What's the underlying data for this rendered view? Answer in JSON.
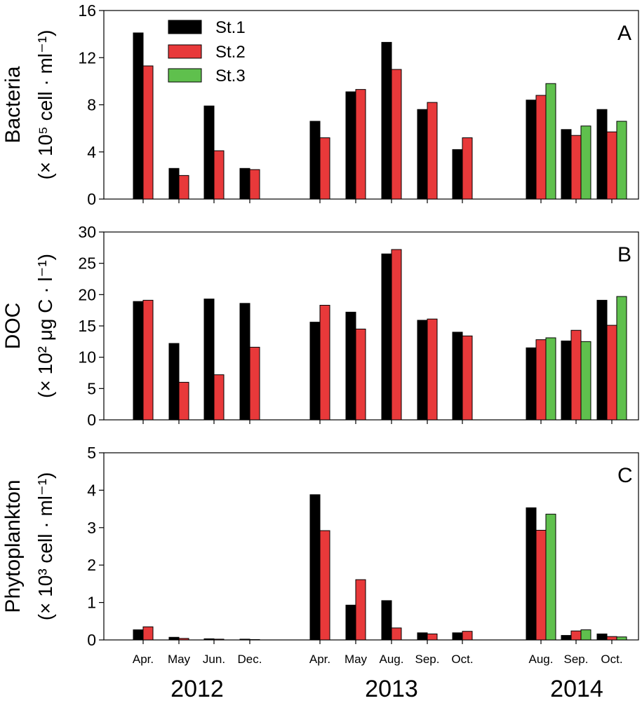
{
  "colors": {
    "st1": "#000000",
    "st2": "#e8393a",
    "st3": "#5fc04d"
  },
  "legend": [
    "St.1",
    "St.2",
    "St.3"
  ],
  "months": [
    "Apr.",
    "May",
    "Jun.",
    "Dec.",
    "Apr.",
    "May",
    "Aug.",
    "Sep.",
    "Oct.",
    "Aug.",
    "Sep.",
    "Oct."
  ],
  "years": [
    "2012",
    "2013",
    "2014"
  ],
  "chart_data": [
    {
      "type": "bar",
      "panel": "A",
      "ylabel_line1": "Bacteria",
      "ylabel_line2": "(× 10⁵ cell · ml⁻¹)",
      "ylim": [
        0,
        16
      ],
      "yticks": [
        0,
        4,
        8,
        12,
        16
      ],
      "categories": [
        "Apr. 2012",
        "May 2012",
        "Jun. 2012",
        "Dec. 2012",
        "Apr. 2013",
        "May 2013",
        "Aug. 2013",
        "Sep. 2013",
        "Oct. 2013",
        "Aug. 2014",
        "Sep. 2014",
        "Oct. 2014"
      ],
      "series": [
        {
          "name": "St.1",
          "values": [
            14.1,
            2.6,
            7.9,
            2.6,
            6.6,
            9.1,
            13.3,
            7.6,
            4.2,
            8.4,
            5.9,
            7.6
          ]
        },
        {
          "name": "St.2",
          "values": [
            11.3,
            2.0,
            4.1,
            2.5,
            5.2,
            9.3,
            11.0,
            8.2,
            5.2,
            8.8,
            5.4,
            5.7
          ]
        },
        {
          "name": "St.3",
          "values": [
            null,
            null,
            null,
            null,
            null,
            null,
            null,
            null,
            null,
            9.8,
            6.2,
            6.6
          ]
        }
      ]
    },
    {
      "type": "bar",
      "panel": "B",
      "ylabel_line1": "DOC",
      "ylabel_line2": "(× 10² μg C · l⁻¹)",
      "ylim": [
        0,
        30
      ],
      "yticks": [
        0,
        5,
        10,
        15,
        20,
        25,
        30
      ],
      "categories": [
        "Apr. 2012",
        "May 2012",
        "Jun. 2012",
        "Dec. 2012",
        "Apr. 2013",
        "May 2013",
        "Aug. 2013",
        "Sep. 2013",
        "Oct. 2013",
        "Aug. 2014",
        "Sep. 2014",
        "Oct. 2014"
      ],
      "series": [
        {
          "name": "St.1",
          "values": [
            18.9,
            12.2,
            19.3,
            18.6,
            15.6,
            17.2,
            26.5,
            15.9,
            14.0,
            11.5,
            12.6,
            19.1
          ]
        },
        {
          "name": "St.2",
          "values": [
            19.1,
            6.0,
            7.2,
            11.6,
            18.3,
            14.5,
            27.2,
            16.1,
            13.4,
            12.8,
            14.3,
            15.1
          ]
        },
        {
          "name": "St.3",
          "values": [
            null,
            null,
            null,
            null,
            null,
            null,
            null,
            null,
            null,
            13.1,
            12.5,
            19.7
          ]
        }
      ]
    },
    {
      "type": "bar",
      "panel": "C",
      "ylabel_line1": "Phytoplankton",
      "ylabel_line2": "(× 10³ cell · ml⁻¹)",
      "ylim": [
        0,
        5
      ],
      "yticks": [
        0,
        1,
        2,
        3,
        4,
        5
      ],
      "categories": [
        "Apr. 2012",
        "May 2012",
        "Jun. 2012",
        "Dec. 2012",
        "Apr. 2013",
        "May 2013",
        "Aug. 2013",
        "Sep. 2013",
        "Oct. 2013",
        "Aug. 2014",
        "Sep. 2014",
        "Oct. 2014"
      ],
      "series": [
        {
          "name": "St.1",
          "values": [
            0.27,
            0.07,
            0.03,
            0.02,
            3.88,
            0.93,
            1.05,
            0.19,
            0.19,
            3.53,
            0.12,
            0.16
          ]
        },
        {
          "name": "St.2",
          "values": [
            0.35,
            0.04,
            0.02,
            0.01,
            2.92,
            1.61,
            0.32,
            0.16,
            0.23,
            2.93,
            0.24,
            0.09
          ]
        },
        {
          "name": "St.3",
          "values": [
            null,
            null,
            null,
            null,
            null,
            null,
            null,
            null,
            null,
            3.36,
            0.27,
            0.08
          ]
        }
      ]
    }
  ]
}
